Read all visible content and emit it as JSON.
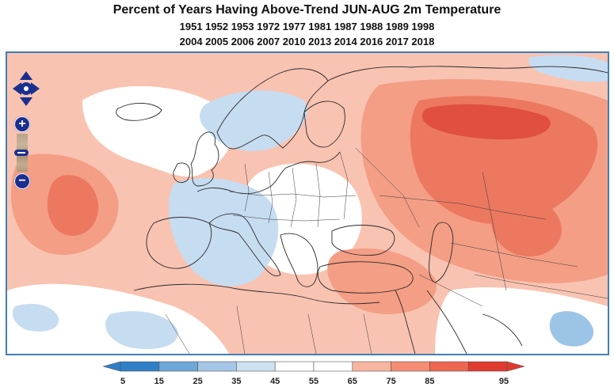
{
  "header": {
    "title": "Percent of Years Having Above-Trend JUN-AUG 2m Temperature",
    "years_line1": "1951 1952 1953 1972 1977 1981 1987 1988 1989 1998",
    "years_line2": "2004 2005 2006 2007 2010 2013 2014 2016 2017 2018"
  },
  "controls": {
    "pan_icon": "pan-arrows-icon",
    "zoom_in": "+",
    "zoom_out": "−"
  },
  "legend": {
    "ticks": [
      "5",
      "15",
      "25",
      "35",
      "45",
      "55",
      "65",
      "75",
      "85",
      "95"
    ],
    "colors": [
      "#2f7fc6",
      "#6ea7d8",
      "#a5c6e6",
      "#cfe0f1",
      "#ffffff",
      "#ffffff",
      "#f8b5a0",
      "#f58d73",
      "#ee6650",
      "#e03a2e"
    ]
  },
  "palette": {
    "light_blue": "#c6dcf1",
    "mid_blue": "#9bc4e6",
    "light_red": "#f9c3b1",
    "mid_red": "#f49e85",
    "strong_red": "#ec7860",
    "deep_red": "#e04f3f",
    "border": "#3f7fb8"
  }
}
